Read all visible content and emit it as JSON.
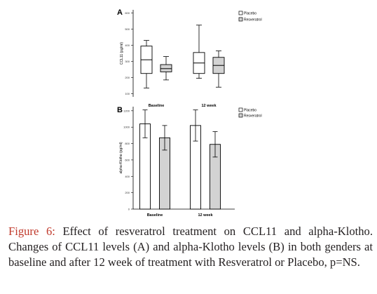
{
  "figure": {
    "caption_label": "Figure 6:",
    "caption_text": " Effect of resveratrol treatment on CCL11 and alpha-Klotho. Changes of CCL11 levels (A) and alpha-Klotho levels (B) in both genders at baseline and after 12 week of treatment with Resveratrol or Placebo, p=NS."
  },
  "colors": {
    "placebo": "#ffffff",
    "resveratrol": "#d3d3d3",
    "stroke": "#000000"
  },
  "chart_data": [
    {
      "type": "box",
      "panel": "A",
      "ylabel": "CCL11 (pg/ml)",
      "xlabel": "",
      "ylim": [
        80,
        620
      ],
      "yticks": [
        100,
        200,
        300,
        400,
        500,
        600
      ],
      "categories": [
        "Baseline",
        "12 week"
      ],
      "legend": {
        "position": "top-right"
      },
      "series": [
        {
          "name": "Placebo",
          "color": "#ffffff",
          "boxes": [
            {
              "whisker_low": 135,
              "q1": 225,
              "median": 310,
              "q3": 395,
              "whisker_high": 430
            },
            {
              "whisker_low": 195,
              "q1": 225,
              "median": 290,
              "q3": 355,
              "whisker_high": 525
            }
          ]
        },
        {
          "name": "Resveratrol",
          "color": "#d3d3d3",
          "boxes": [
            {
              "whisker_low": 185,
              "q1": 235,
              "median": 255,
              "q3": 280,
              "whisker_high": 330
            },
            {
              "whisker_low": 140,
              "q1": 225,
              "median": 275,
              "q3": 325,
              "whisker_high": 365
            }
          ]
        }
      ]
    },
    {
      "type": "bar",
      "panel": "B",
      "ylabel": "alpha-Klotho (pg/ml)",
      "xlabel": "",
      "ylim": [
        0,
        1250
      ],
      "yticks": [
        0,
        200,
        400,
        600,
        800,
        1000,
        1200
      ],
      "categories": [
        "Baseline",
        "12 week"
      ],
      "legend": {
        "position": "top-right"
      },
      "series": [
        {
          "name": "Placebo",
          "color": "#ffffff",
          "values": [
            1040,
            1020
          ],
          "error": [
            170,
            190
          ]
        },
        {
          "name": "Resveratrol",
          "color": "#d3d3d3",
          "values": [
            870,
            790
          ],
          "error": [
            150,
            155
          ]
        }
      ]
    }
  ]
}
